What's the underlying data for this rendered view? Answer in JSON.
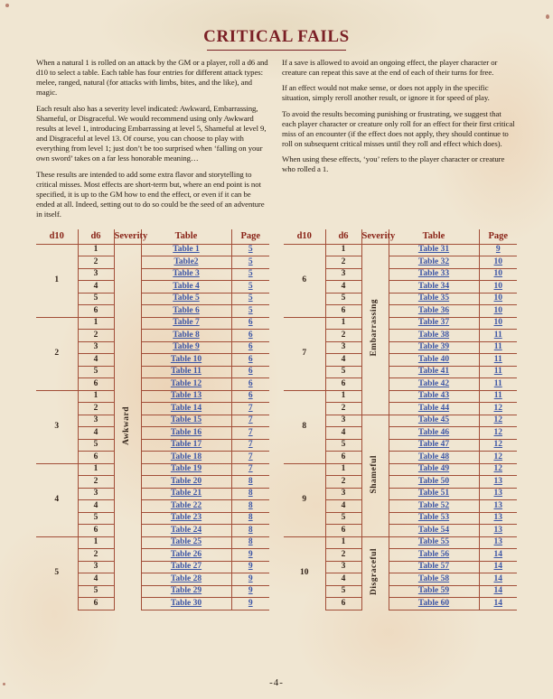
{
  "title": "CRITICAL FAILS",
  "footer": "-4-",
  "intro_left": [
    "When a natural 1 is rolled on an attack by the GM or a player, roll a d6 and d10 to select a table. Each table has four entries for different attack types: melee, ranged, natural (for attacks with limbs, bites, and the like), and magic.",
    "Each result also has a severity level indicated: Awkward, Embarrassing, Shameful, or Disgraceful. We would recommend using only Awkward results at level 1, introducing Embarrassing at level 5, Shameful at level 9, and Disgraceful at level 13. Of course, you can choose to play with everything from level 1; just don’t be too surprised when ‘falling on your own sword’ takes on a far less honorable meaning…",
    "These results are intended to add some extra flavor and storytelling to critical misses. Most effects are short-term but, where an end point is not specified, it is up to the GM how to end the effect, or even if it can be ended at all. Indeed, setting out to do so could be the seed of an adventure in itself."
  ],
  "intro_right": [
    "If a save is allowed to avoid an ongoing effect, the player character or creature can repeat this save at the end of each of their turns for free.",
    "If an effect would not make sense, or does not apply in the specific situation, simply reroll another result, or ignore it for speed of play.",
    "To avoid the results becoming punishing or frustrating, we suggest that each player character or creature only roll for an effect for their first critical miss of an encounter (if the effect does not apply, they should continue to roll on subsequent critical misses until they roll and effect which does).",
    "When using these effects, ‘you’ refers to the player character or creature who rolled a 1."
  ],
  "table_headers": {
    "d10": "d10",
    "d6": "d6",
    "severity": "Severity",
    "table": "Table",
    "page": "Page"
  },
  "tables": [
    {
      "severities": [
        {
          "label": "Awkward",
          "rows": 30
        }
      ],
      "groups": [
        {
          "d10": "1",
          "entries": [
            [
              "1",
              "Table 1",
              "5"
            ],
            [
              "2",
              "Table2",
              "5"
            ],
            [
              "3",
              "Table 3",
              "5"
            ],
            [
              "4",
              "Table 4",
              "5"
            ],
            [
              "5",
              "Table 5",
              "5"
            ],
            [
              "6",
              "Table 6",
              "5"
            ]
          ]
        },
        {
          "d10": "2",
          "entries": [
            [
              "1",
              "Table 7",
              "6"
            ],
            [
              "2",
              "Table 8",
              "6"
            ],
            [
              "3",
              "Table 9",
              "6"
            ],
            [
              "4",
              "Table 10",
              "6"
            ],
            [
              "5",
              "Table 11",
              "6"
            ],
            [
              "6",
              "Table 12",
              "6"
            ]
          ]
        },
        {
          "d10": "3",
          "entries": [
            [
              "1",
              "Table 13",
              "6"
            ],
            [
              "2",
              "Table 14",
              "7"
            ],
            [
              "3",
              "Table 15",
              "7"
            ],
            [
              "4",
              "Table 16",
              "7"
            ],
            [
              "5",
              "Table 17",
              "7"
            ],
            [
              "6",
              "Table 18",
              "7"
            ]
          ]
        },
        {
          "d10": "4",
          "entries": [
            [
              "1",
              "Table 19",
              "7"
            ],
            [
              "2",
              "Table 20",
              "8"
            ],
            [
              "3",
              "Table 21",
              "8"
            ],
            [
              "4",
              "Table 22",
              "8"
            ],
            [
              "5",
              "Table 23",
              "8"
            ],
            [
              "6",
              "Table 24",
              "8"
            ]
          ]
        },
        {
          "d10": "5",
          "entries": [
            [
              "1",
              "Table 25",
              "8"
            ],
            [
              "2",
              "Table 26",
              "9"
            ],
            [
              "3",
              "Table 27",
              "9"
            ],
            [
              "4",
              "Table 28",
              "9"
            ],
            [
              "5",
              "Table 29",
              "9"
            ],
            [
              "6",
              "Table 30",
              "9"
            ]
          ]
        }
      ]
    },
    {
      "severities": [
        {
          "label": "Embarrassing",
          "rows": 14
        },
        {
          "label": "Shameful",
          "rows": 10
        },
        {
          "label": "Disgraceful",
          "rows": 6
        }
      ],
      "groups": [
        {
          "d10": "6",
          "entries": [
            [
              "1",
              "Table 31",
              "9"
            ],
            [
              "2",
              "Table 32",
              "10"
            ],
            [
              "3",
              "Table 33",
              "10"
            ],
            [
              "4",
              "Table 34",
              "10"
            ],
            [
              "5",
              "Table 35",
              "10"
            ],
            [
              "6",
              "Table 36",
              "10"
            ]
          ]
        },
        {
          "d10": "7",
          "entries": [
            [
              "1",
              "Table 37",
              "10"
            ],
            [
              "2",
              "Table 38",
              "11"
            ],
            [
              "3",
              "Table 39",
              "11"
            ],
            [
              "4",
              "Table 40",
              "11"
            ],
            [
              "5",
              "Table 41",
              "11"
            ],
            [
              "6",
              "Table 42",
              "11"
            ]
          ]
        },
        {
          "d10": "8",
          "entries": [
            [
              "1",
              "Table 43",
              "11"
            ],
            [
              "2",
              "Table 44",
              "12"
            ],
            [
              "3",
              "Table 45",
              "12"
            ],
            [
              "4",
              "Table 46",
              "12"
            ],
            [
              "5",
              "Table 47",
              "12"
            ],
            [
              "6",
              "Table 48",
              "12"
            ]
          ]
        },
        {
          "d10": "9",
          "entries": [
            [
              "1",
              "Table 49",
              "12"
            ],
            [
              "2",
              "Table 50",
              "13"
            ],
            [
              "3",
              "Table 51",
              "13"
            ],
            [
              "4",
              "Table 52",
              "13"
            ],
            [
              "5",
              "Table 53",
              "13"
            ],
            [
              "6",
              "Table 54",
              "13"
            ]
          ]
        },
        {
          "d10": "10",
          "entries": [
            [
              "1",
              "Table 55",
              "13"
            ],
            [
              "2",
              "Table 56",
              "14"
            ],
            [
              "3",
              "Table 57",
              "14"
            ],
            [
              "4",
              "Table 58",
              "14"
            ],
            [
              "5",
              "Table 59",
              "14"
            ],
            [
              "6",
              "Table 60",
              "14"
            ]
          ]
        }
      ]
    }
  ],
  "colors": {
    "background": "#f0e6d2",
    "accent": "#7b2026",
    "table_border": "#a24e38",
    "header_text": "#8a2418",
    "link": "#3c55a5",
    "text": "#241b12",
    "num": "#33241a"
  }
}
